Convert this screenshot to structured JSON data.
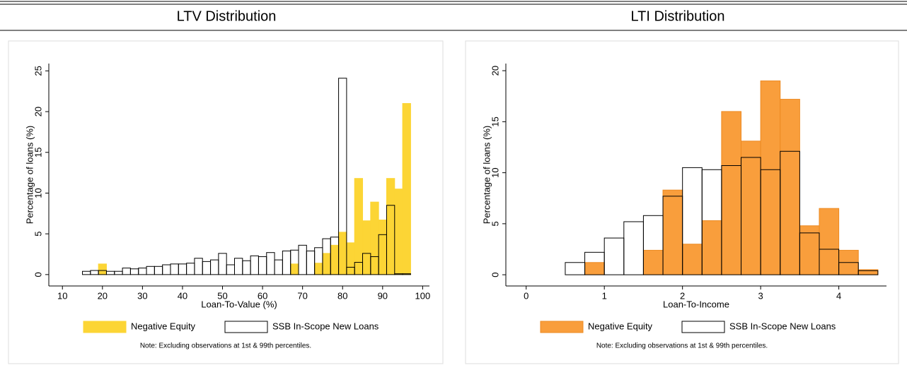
{
  "chart_data": [
    {
      "type": "histogram",
      "title": "LTV Distribution",
      "xlabel": "Loan-To-Value (%)",
      "ylabel": "Percentage of loans (%)",
      "note": "Note: Excluding observations at 1st & 99th percentiles.",
      "bins": [
        15,
        17,
        19,
        21,
        23,
        25,
        27,
        29,
        31,
        33,
        35,
        37,
        39,
        41,
        43,
        45,
        47,
        49,
        51,
        53,
        55,
        57,
        59,
        61,
        63,
        65,
        67,
        69,
        71,
        73,
        75,
        77,
        79,
        81,
        83,
        85,
        87,
        89,
        91,
        93,
        95,
        97
      ],
      "series": [
        {
          "name": "Negative Equity",
          "color": "#fcd535",
          "edgecolor": "#fcd535",
          "values": [
            0,
            0,
            1.3,
            0,
            0,
            0,
            0,
            0,
            0,
            0,
            0,
            0,
            0,
            0,
            0,
            0,
            0,
            0,
            0,
            0,
            0,
            0,
            0,
            0,
            0,
            0,
            1.3,
            0,
            0,
            1.4,
            2.6,
            3.6,
            5.2,
            3.9,
            11.8,
            6.6,
            8.9,
            6.7,
            11.8,
            10.5,
            21.0
          ]
        },
        {
          "name": "SSB In-Scope New Loans",
          "color": "#ffffff",
          "edgecolor": "#000000",
          "values": [
            0.4,
            0.5,
            0.5,
            0.4,
            0.4,
            0.8,
            0.7,
            0.8,
            1.0,
            1.0,
            1.2,
            1.3,
            1.3,
            1.4,
            2.0,
            1.6,
            1.8,
            2.6,
            1.2,
            2.0,
            1.7,
            2.3,
            2.2,
            2.7,
            1.8,
            2.9,
            3.0,
            3.6,
            2.9,
            3.3,
            4.4,
            4.6,
            24.1,
            0.9,
            1.5,
            2.6,
            2.2,
            4.9,
            8.5,
            0.1,
            0.1
          ]
        }
      ],
      "xlim": [
        6.6,
        101.7
      ],
      "xticks": [
        10,
        20,
        30,
        40,
        50,
        60,
        70,
        80,
        90,
        100
      ],
      "ylim": [
        -1.4,
        25.9
      ],
      "yticks": [
        0,
        5,
        10,
        15,
        20,
        25
      ]
    },
    {
      "type": "histogram",
      "title": "LTI Distribution",
      "xlabel": "Loan-To-Income",
      "ylabel": "Percentage of loans (%)",
      "note": "Note: Excluding observations at 1st & 99th percentiles.",
      "bins": [
        0.5,
        0.75,
        1,
        1.25,
        1.5,
        1.75,
        2,
        2.25,
        2.5,
        2.75,
        3,
        3.25,
        3.5,
        3.75,
        4,
        4.25,
        4.5
      ],
      "series": [
        {
          "name": "Negative Equity",
          "color": "#f99e3c",
          "edgecolor": "#ec8a22",
          "values": [
            0,
            1.2,
            0,
            0,
            2.4,
            8.3,
            3.0,
            5.3,
            16.0,
            13.1,
            19.0,
            17.2,
            4.8,
            6.5,
            2.4,
            0.5
          ]
        },
        {
          "name": "SSB In-Scope New Loans",
          "color": "#ffffff",
          "edgecolor": "#000000",
          "values": [
            1.2,
            2.2,
            3.6,
            5.2,
            5.8,
            7.7,
            10.5,
            10.3,
            10.7,
            11.5,
            10.3,
            12.1,
            4.1,
            2.5,
            1.2,
            0.4
          ]
        }
      ],
      "xlim": [
        -0.26,
        4.61
      ],
      "xticks": [
        0,
        1,
        2,
        3,
        4
      ],
      "ylim": [
        -1.1,
        20.7
      ],
      "yticks": [
        0,
        5,
        10,
        15,
        20
      ]
    }
  ]
}
